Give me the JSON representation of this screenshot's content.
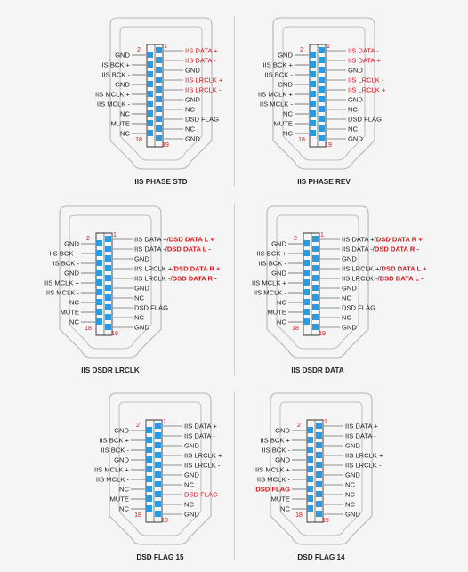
{
  "accent_color": "#d7141a",
  "pin_color": "#2c9ae0",
  "text_color": "#222222",
  "panels": [
    {
      "title": "IIS PHASE STD",
      "pin_numbers": {
        "top_left": "2",
        "top_right": "1",
        "bottom_left": "18",
        "bottom_right": "19"
      },
      "left_labels": [
        {
          "text": "GND"
        },
        {
          "text": "IIS BCK +"
        },
        {
          "text": "IIS BCK -"
        },
        {
          "text": "GND"
        },
        {
          "text": "IIS MCLK +"
        },
        {
          "text": "IIS MCLK -"
        },
        {
          "text": "NC"
        },
        {
          "text": "MUTE"
        },
        {
          "text": "NC"
        }
      ],
      "right_labels": [
        {
          "text": "IIS DATA +",
          "red": true
        },
        {
          "text": "IIS DATA -",
          "red": true
        },
        {
          "text": "GND"
        },
        {
          "text": "IIS LRCLK +",
          "red": true
        },
        {
          "text": "IIS LRCLK -",
          "red": true
        },
        {
          "text": "GND"
        },
        {
          "text": "NC"
        },
        {
          "text": "DSD FLAG"
        },
        {
          "text": "NC"
        },
        {
          "text": "GND"
        }
      ]
    },
    {
      "title": "IIS PHASE REV",
      "pin_numbers": {
        "top_left": "2",
        "top_right": "1",
        "bottom_left": "18",
        "bottom_right": "19"
      },
      "left_labels": [
        {
          "text": "GND"
        },
        {
          "text": "IIS BCK +"
        },
        {
          "text": "IIS BCK -"
        },
        {
          "text": "GND"
        },
        {
          "text": "IIS MCLK +"
        },
        {
          "text": "IIS MCLK -"
        },
        {
          "text": "NC"
        },
        {
          "text": "MUTE"
        },
        {
          "text": "NC"
        }
      ],
      "right_labels": [
        {
          "text": "IIS DATA -",
          "red": true
        },
        {
          "text": "IIS DATA +",
          "red": true
        },
        {
          "text": "GND"
        },
        {
          "text": "IIS LRCLK -",
          "red": true
        },
        {
          "text": "IIS LRCLK +",
          "red": true
        },
        {
          "text": "GND"
        },
        {
          "text": "NC"
        },
        {
          "text": "DSD FLAG"
        },
        {
          "text": "NC"
        },
        {
          "text": "GND"
        }
      ]
    },
    {
      "title": "IIS DSDR LRCLK",
      "pin_numbers": {
        "top_left": "2",
        "top_right": "1",
        "bottom_left": "18",
        "bottom_right": "19"
      },
      "left_labels": [
        {
          "text": "GND"
        },
        {
          "text": "IIS BCK +"
        },
        {
          "text": "IIS BCK -"
        },
        {
          "text": "GND"
        },
        {
          "text": "IIS MCLK +"
        },
        {
          "text": "IIS MCLK -"
        },
        {
          "text": "NC"
        },
        {
          "text": "MUTE"
        },
        {
          "text": "NC"
        }
      ],
      "right_labels": [
        {
          "text": "IIS DATA +/",
          "extra": "DSD DATA L +"
        },
        {
          "text": "IIS DATA -/",
          "extra": "DSD DATA L -"
        },
        {
          "text": "GND"
        },
        {
          "text": "IIS LRCLK +/",
          "extra": "DSD DATA R +"
        },
        {
          "text": "IIS LRCLK -/",
          "extra": "DSD DATA R -"
        },
        {
          "text": "GND"
        },
        {
          "text": "NC"
        },
        {
          "text": "DSD FLAG"
        },
        {
          "text": "NC"
        },
        {
          "text": "GND"
        }
      ]
    },
    {
      "title": "IIS DSDR DATA",
      "pin_numbers": {
        "top_left": "2",
        "top_right": "1",
        "bottom_left": "18",
        "bottom_right": "19"
      },
      "left_labels": [
        {
          "text": "GND"
        },
        {
          "text": "IIS BCK +"
        },
        {
          "text": "IIS BCK -"
        },
        {
          "text": "GND"
        },
        {
          "text": "IIS MCLK +"
        },
        {
          "text": "IIS MCLK -"
        },
        {
          "text": "NC"
        },
        {
          "text": "MUTE"
        },
        {
          "text": "NC"
        }
      ],
      "right_labels": [
        {
          "text": "IIS DATA +/",
          "extra": "DSD DATA R +"
        },
        {
          "text": "IIS DATA -/",
          "extra": "DSD DATA R -"
        },
        {
          "text": "GND"
        },
        {
          "text": "IIS LRCLK +/",
          "extra": "DSD DATA L +"
        },
        {
          "text": "IIS LRCLK -/",
          "extra": "DSD DATA L -"
        },
        {
          "text": "GND"
        },
        {
          "text": "NC"
        },
        {
          "text": "DSD FLAG"
        },
        {
          "text": "NC"
        },
        {
          "text": "GND"
        }
      ]
    },
    {
      "title": "DSD FLAG 15",
      "pin_numbers": {
        "top_left": "2",
        "top_right": "1",
        "bottom_left": "18",
        "bottom_right": "19"
      },
      "left_labels": [
        {
          "text": "GND"
        },
        {
          "text": "IIS BCK +"
        },
        {
          "text": "IIS BCK -"
        },
        {
          "text": "GND"
        },
        {
          "text": "IIS MCLK +"
        },
        {
          "text": "IIS MCLK -"
        },
        {
          "text": "NC"
        },
        {
          "text": "MUTE"
        },
        {
          "text": "NC"
        }
      ],
      "right_labels": [
        {
          "text": "IIS DATA +"
        },
        {
          "text": "IIS DATA -"
        },
        {
          "text": "GND"
        },
        {
          "text": "IIS LRCLK +"
        },
        {
          "text": "IIS LRCLK -"
        },
        {
          "text": "GND"
        },
        {
          "text": "NC"
        },
        {
          "text": "DSD FLAG",
          "red": true
        },
        {
          "text": "NC"
        },
        {
          "text": "GND"
        }
      ]
    },
    {
      "title": "DSD FLAG 14",
      "pin_numbers": {
        "top_left": "2",
        "top_right": "1",
        "bottom_left": "18",
        "bottom_right": "19"
      },
      "left_labels": [
        {
          "text": "GND"
        },
        {
          "text": "IIS BCK +"
        },
        {
          "text": "IIS BCK -"
        },
        {
          "text": "GND"
        },
        {
          "text": "IIS MCLK +"
        },
        {
          "text": "IIS MCLK -"
        },
        {
          "text": "DSD FLAG",
          "red": true
        },
        {
          "text": "MUTE"
        },
        {
          "text": "NC"
        }
      ],
      "right_labels": [
        {
          "text": "IIS DATA +"
        },
        {
          "text": "IIS DATA -"
        },
        {
          "text": "GND"
        },
        {
          "text": "IIS LRCLK +"
        },
        {
          "text": "IIS LRCLK -"
        },
        {
          "text": "GND"
        },
        {
          "text": "NC"
        },
        {
          "text": "NC"
        },
        {
          "text": "NC"
        },
        {
          "text": "GND"
        }
      ]
    }
  ]
}
